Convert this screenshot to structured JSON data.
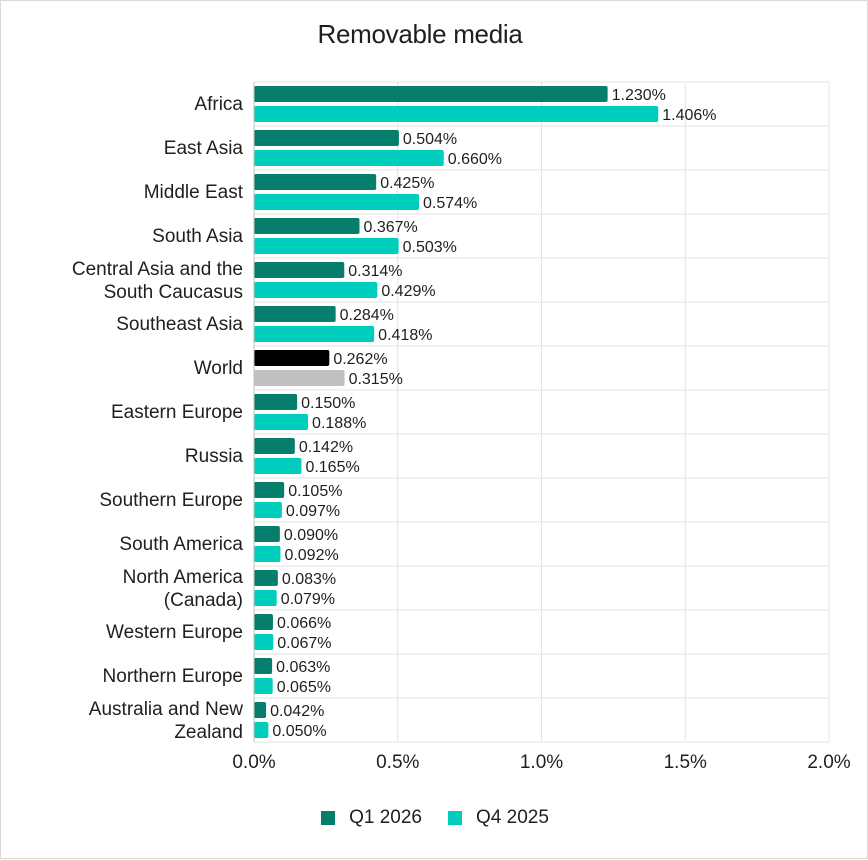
{
  "chart_data": {
    "type": "bar",
    "orientation": "horizontal",
    "title": "Removable media",
    "xlabel": "",
    "ylabel": "",
    "xlim": [
      0,
      2.0
    ],
    "x_ticks": [
      "0.0%",
      "0.5%",
      "1.0%",
      "1.5%",
      "2.0%"
    ],
    "grid": true,
    "legend_position": "bottom",
    "categories": [
      "Africa",
      "East Asia",
      "Middle East",
      "South Asia",
      "Central Asia and the South Caucasus",
      "Southeast Asia",
      "World",
      "Eastern Europe",
      "Russia",
      "Southern Europe",
      "South America",
      "North America (Canada)",
      "Western Europe",
      "Northern Europe",
      "Australia and New Zealand"
    ],
    "category_lines": [
      [
        "Africa"
      ],
      [
        "East Asia"
      ],
      [
        "Middle East"
      ],
      [
        "South Asia"
      ],
      [
        "Central Asia and the",
        "South Caucasus"
      ],
      [
        "Southeast Asia"
      ],
      [
        "World"
      ],
      [
        "Eastern Europe"
      ],
      [
        "Russia"
      ],
      [
        "Southern Europe"
      ],
      [
        "South America"
      ],
      [
        "North America",
        "(Canada)"
      ],
      [
        "Western Europe"
      ],
      [
        "Northern Europe"
      ],
      [
        "Australia and New",
        "Zealand"
      ]
    ],
    "series": [
      {
        "name": "Q1 2026",
        "color": "#057f6b",
        "values": [
          1.23,
          0.504,
          0.425,
          0.367,
          0.314,
          0.284,
          0.262,
          0.15,
          0.142,
          0.105,
          0.09,
          0.083,
          0.066,
          0.063,
          0.042
        ],
        "labels": [
          "1.230%",
          "0.504%",
          "0.425%",
          "0.367%",
          "0.314%",
          "0.284%",
          "0.262%",
          "0.150%",
          "0.142%",
          "0.105%",
          "0.090%",
          "0.083%",
          "0.066%",
          "0.063%",
          "0.042%"
        ]
      },
      {
        "name": "Q4 2025",
        "color": "#00cdbb",
        "values": [
          1.406,
          0.66,
          0.574,
          0.503,
          0.429,
          0.418,
          0.315,
          0.188,
          0.165,
          0.097,
          0.092,
          0.079,
          0.067,
          0.065,
          0.05
        ],
        "labels": [
          "1.406%",
          "0.660%",
          "0.574%",
          "0.503%",
          "0.429%",
          "0.418%",
          "0.315%",
          "0.188%",
          "0.165%",
          "0.097%",
          "0.092%",
          "0.079%",
          "0.067%",
          "0.065%",
          "0.050%"
        ]
      }
    ],
    "highlight": {
      "category": "World",
      "colors": {
        "Q1 2026": "#000000",
        "Q4 2025": "#c0c0c0"
      }
    }
  }
}
